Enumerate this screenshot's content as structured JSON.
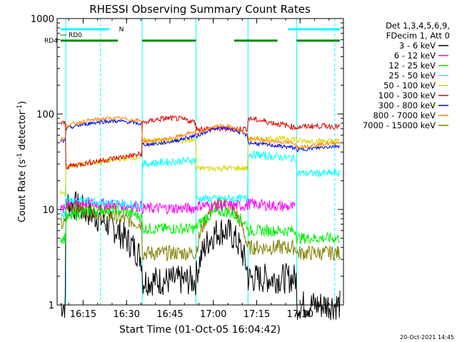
{
  "chart_data": {
    "type": "line",
    "title": "RHESSI Observing Summary Count Rates",
    "xlabel": "Start Time (01-Oct-05 16:04:42)",
    "ylabel_main": "Count Rate (s",
    "ylabel_exp1": "-1",
    "ylabel_mid": " detector",
    "ylabel_exp2": "-1",
    "ylabel_close": ")",
    "yscale": "log",
    "ylim": [
      1,
      1000
    ],
    "xlim": [
      16.1,
      17.75
    ],
    "xticks": [
      16.25,
      16.5,
      16.75,
      17.0,
      17.25,
      17.5
    ],
    "xtick_labels": [
      "16:15",
      "16:30",
      "16:45",
      "17:00",
      "17:15",
      "17:30"
    ],
    "yticks": [
      1,
      10,
      100,
      1000
    ],
    "ytick_labels": [
      "1",
      "10",
      "100",
      "1000"
    ],
    "grid": false,
    "legend_header": [
      "Det 1,3,4,5,6,9,",
      "FDecim 1, Att 0"
    ],
    "legend_placement": "top-right (outside)",
    "series": [
      {
        "name": "3 - 6 keV",
        "color": "#000000",
        "style": "0"
      },
      {
        "name": "6 - 12 keV",
        "color": "#ff00ff",
        "style": "1"
      },
      {
        "name": "12 - 25 keV",
        "color": "#00ee00",
        "style": "2"
      },
      {
        "name": "25 - 50 keV",
        "color": "#00ffff",
        "style": "3"
      },
      {
        "name": "50 - 100 keV",
        "color": "#d8d800",
        "style": "4"
      },
      {
        "name": "100 - 300 keV",
        "color": "#e00000",
        "style": "5"
      },
      {
        "name": "300 - 800 keV",
        "color": "#0000ee",
        "style": "6"
      },
      {
        "name": "800 - 7000 keV",
        "color": "#ff8800",
        "style": "7"
      },
      {
        "name": "7000 - 15000 keV",
        "color": "#808000",
        "style": "8"
      }
    ],
    "flags": [
      {
        "label": "N",
        "color": "#00ffff",
        "segments": [
          [
            16.12,
            16.4
          ],
          [
            17.43,
            17.73
          ]
        ]
      },
      {
        "label": "RD0",
        "color": "#008800",
        "segments": []
      },
      {
        "label": "RD4",
        "color": "#008800",
        "segments": [
          [
            16.12,
            16.45
          ],
          [
            16.59,
            16.9
          ],
          [
            17.12,
            17.37
          ],
          [
            17.48,
            17.73
          ]
        ]
      }
    ],
    "boundaries": [
      16.15,
      16.59,
      16.9,
      17.2,
      17.48
    ]
  },
  "timestamp": "20-Oct-2021 14:45"
}
